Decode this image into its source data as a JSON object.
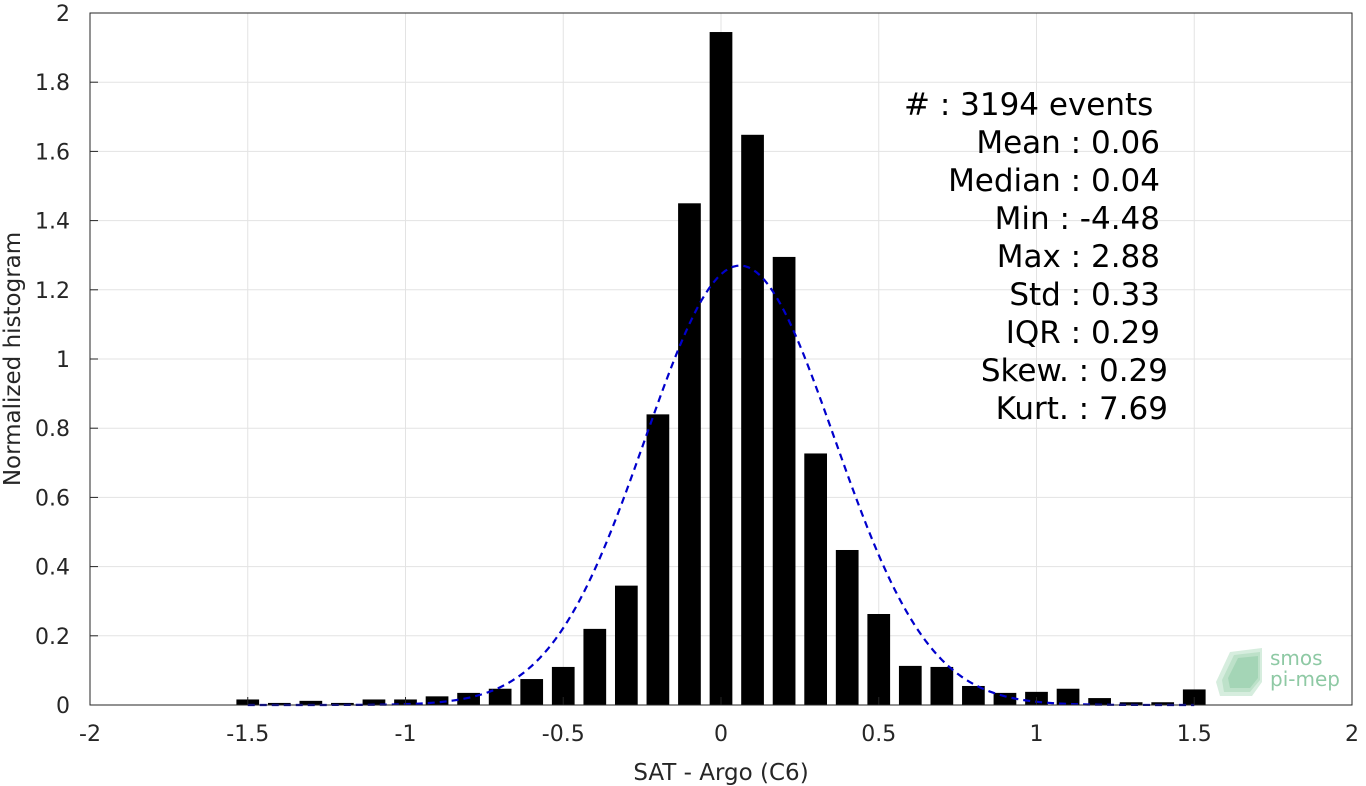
{
  "chart_data": {
    "type": "bar",
    "xlabel": "SAT - Argo (C6)",
    "ylabel": "Normalized histogram",
    "xlim": [
      -2,
      2
    ],
    "ylim": [
      0,
      2
    ],
    "xticks": [
      -2,
      -1.5,
      -1,
      -0.5,
      0,
      0.5,
      1,
      1.5,
      2
    ],
    "xtick_labels": [
      "-2",
      "-1.5",
      "-1",
      "-0.5",
      "0",
      "0.5",
      "1",
      "1.5",
      "2"
    ],
    "yticks": [
      0,
      0.2,
      0.4,
      0.6,
      0.8,
      1,
      1.2,
      1.4,
      1.6,
      1.8,
      2
    ],
    "ytick_labels": [
      "0",
      "0.2",
      "0.4",
      "0.6",
      "0.8",
      "1",
      "1.2",
      "1.4",
      "1.6",
      "1.8",
      "2"
    ],
    "grid": true,
    "bar_color": "#000000",
    "bins": [
      -1.5,
      -1.4,
      -1.3,
      -1.2,
      -1.1,
      -1.0,
      -0.9,
      -0.8,
      -0.7,
      -0.6,
      -0.5,
      -0.4,
      -0.3,
      -0.2,
      -0.1,
      0.0,
      0.1,
      0.2,
      0.3,
      0.4,
      0.5,
      0.6,
      0.7,
      0.8,
      0.9,
      1.0,
      1.1,
      1.2,
      1.3,
      1.4,
      1.5
    ],
    "values": [
      0.016,
      0.006,
      0.012,
      0.006,
      0.016,
      0.016,
      0.025,
      0.035,
      0.047,
      0.075,
      0.11,
      0.22,
      0.345,
      0.84,
      1.45,
      1.945,
      1.648,
      1.295,
      0.727,
      0.448,
      0.263,
      0.113,
      0.11,
      0.055,
      0.035,
      0.038,
      0.047,
      0.02,
      0.008,
      0.008,
      0.045
    ],
    "fit": {
      "style": "dashed",
      "color": "#0000cc",
      "mean": 0.06,
      "std": 0.3,
      "peak": 1.27,
      "x_range": [
        -1.5,
        1.5
      ]
    }
  },
  "stats": {
    "lines": [
      "#  : 3194 events",
      "Mean : 0.06",
      "Median : 0.04",
      "Min : -4.48",
      "Max : 2.88",
      "Std : 0.33",
      "IQR : 0.29",
      "Skew. : 0.29",
      "Kurt. : 7.69"
    ]
  },
  "logo": {
    "line1": "smos",
    "line2": "pi-mep",
    "color": "#8ec9a4"
  }
}
